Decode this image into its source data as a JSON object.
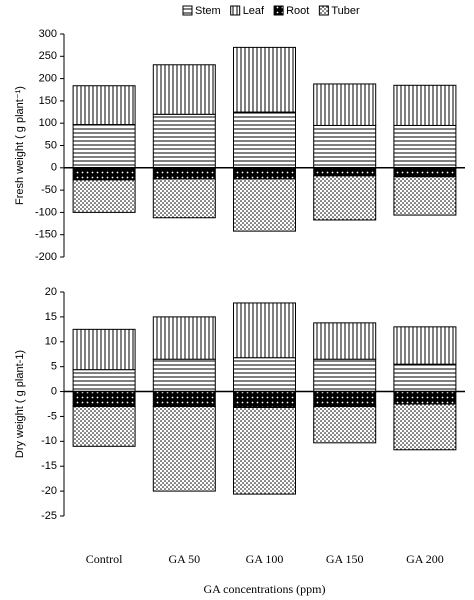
{
  "chart_data": [
    {
      "type": "stacked-bar",
      "ylabel": "Fresh weight ( g plant⁻¹)",
      "series": [
        {
          "name": "Stem",
          "pattern": "horizontal-lines",
          "color": "#000000",
          "values": [
            97,
            120,
            125,
            95,
            95
          ]
        },
        {
          "name": "Leaf",
          "pattern": "vertical-lines",
          "color": "#000000",
          "values": [
            87,
            111,
            145,
            93,
            90
          ]
        },
        {
          "name": "Root",
          "pattern": "dark-dots",
          "color": "#000000",
          "values": [
            -27,
            -25,
            -25,
            -18,
            -20
          ]
        },
        {
          "name": "Tuber",
          "pattern": "light-dots",
          "color": "#000000",
          "values": [
            -73,
            -87,
            -117,
            -99,
            -86
          ]
        }
      ],
      "ylim": [
        -200,
        300
      ],
      "yticks": [
        300,
        250,
        200,
        150,
        100,
        50,
        0,
        -50,
        -100,
        -150,
        -200
      ]
    },
    {
      "type": "stacked-bar",
      "ylabel": "Dry weight ( g plant-1)",
      "xlabel": "GA concentrations (ppm)",
      "categories": [
        "Control",
        "GA 50",
        "GA 100",
        "GA 150",
        "GA 200"
      ],
      "series": [
        {
          "pattern": "horizontal-lines",
          "color": "#000000",
          "values": [
            4.4,
            6.5,
            6.8,
            6.5,
            5.5
          ]
        },
        {
          "pattern": "vertical-lines",
          "color": "#000000",
          "values": [
            8.1,
            8.5,
            11,
            7.3,
            7.5
          ]
        },
        {
          "pattern": "dark-dots",
          "color": "#000000",
          "values": [
            -3,
            -3,
            -3.2,
            -3,
            -2.5
          ]
        },
        {
          "pattern": "light-dots",
          "color": "#000000",
          "values": [
            -8,
            -17,
            -17.4,
            -7.3,
            -9.2
          ]
        }
      ],
      "ylim": [
        -25,
        20
      ],
      "yticks": [
        20,
        15,
        10,
        5,
        0,
        -5,
        -10,
        -15,
        -20,
        -25
      ]
    }
  ]
}
